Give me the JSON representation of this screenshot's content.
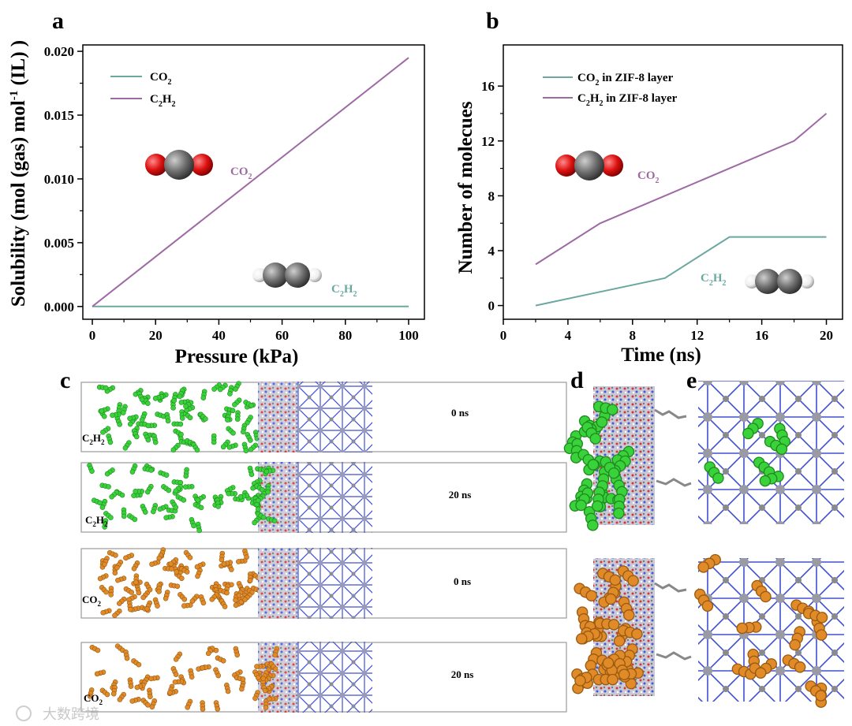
{
  "panel_letters": {
    "a": "a",
    "b": "b",
    "c": "c",
    "d": "d",
    "e": "e"
  },
  "colors": {
    "co2_line": "#6aa8a0",
    "c2h2_line": "#9e6aa4",
    "annot_co2": "#9e6aa4",
    "annot_c2h2": "#6aa8a0",
    "zif": "#3f4fd2",
    "c2h2_mol": "#3ad23a",
    "co2_mol": "#e08a28",
    "oxygen": "#dd1111",
    "carbon": "#6e6e6e",
    "hydrogen": "#f2f2f2"
  },
  "chart_data": [
    {
      "type": "line",
      "title": "",
      "xlabel": "Pressure (kPa)",
      "ylabel": "Solubility (mol (gas) mol-1 (IL) )",
      "xlim": [
        -3,
        105
      ],
      "ylim": [
        -0.001,
        0.0205
      ],
      "xticks": [
        "0",
        "20",
        "40",
        "60",
        "80",
        "100"
      ],
      "yticks": [
        "0.000",
        "0.005",
        "0.010",
        "0.015",
        "0.020"
      ],
      "series": [
        {
          "name": "CO2",
          "x": [
            0,
            100
          ],
          "y": [
            0,
            0
          ]
        },
        {
          "name": "C2H2",
          "x": [
            0,
            100
          ],
          "y": [
            0,
            0.0195
          ]
        }
      ],
      "legend_position": "top-left",
      "annotations": [
        "CO2",
        "C2H2"
      ]
    },
    {
      "type": "line",
      "title": "",
      "xlabel": "Time (ns)",
      "ylabel": "Number of molecues",
      "xlim": [
        0,
        21
      ],
      "ylim": [
        -1,
        19
      ],
      "xticks": [
        "0",
        "4",
        "8",
        "12",
        "16",
        "20"
      ],
      "yticks": [
        "0",
        "4",
        "8",
        "12",
        "16"
      ],
      "series": [
        {
          "name": "CO2 in ZIF-8 layer",
          "x": [
            2,
            6,
            10,
            14,
            18,
            20
          ],
          "y": [
            0,
            1,
            2,
            5,
            5,
            5
          ]
        },
        {
          "name": "C2H2 in ZIF-8 layer",
          "x": [
            2,
            6,
            10,
            14,
            18,
            20
          ],
          "y": [
            3,
            6,
            8,
            10,
            12,
            14
          ]
        }
      ],
      "legend_position": "top-left",
      "annotations": [
        "CO2",
        "C2H2"
      ]
    }
  ],
  "panel_a": {
    "ylabel_main": "Solubility (mol (gas) mol",
    "ylabel_sup": "-1",
    "ylabel_end": " (IL) )",
    "xlabel": "Pressure (kPa)",
    "legend_co2": "CO",
    "legend_co2_sub": "2",
    "legend_c2h2_a": "C",
    "legend_c2h2_sub1": "2",
    "legend_c2h2_b": "H",
    "legend_c2h2_sub2": "2",
    "annot_co2": "CO",
    "annot_co2_sub": "2",
    "annot_c2h2_a": "C",
    "annot_c2h2_sub1": "2",
    "annot_c2h2_b": "H",
    "annot_c2h2_sub2": "2"
  },
  "panel_b": {
    "xlabel": "Time (ns)",
    "ylabel": "Number of molecues",
    "legend_co2": "CO",
    "legend_co2_sub": "2",
    "legend_co2_tail": " in ZIF-8 layer",
    "legend_c2h2_a": "C",
    "legend_c2h2_sub1": "2",
    "legend_c2h2_b": "H",
    "legend_c2h2_sub2": "2",
    "legend_c2h2_tail": " in ZIF-8 layer",
    "annot_co2": "CO",
    "annot_co2_sub": "2",
    "annot_c2h2_a": "C",
    "annot_c2h2_sub1": "2",
    "annot_c2h2_b": "H",
    "annot_c2h2_sub2": "2"
  },
  "panel_c": {
    "box1_time": "0 ns",
    "box2_time": "20 ns",
    "box3_time": "0 ns",
    "box4_time": "20 ns",
    "c2h2_a": "C",
    "c2h2_sub1": "2",
    "c2h2_b": "H",
    "c2h2_sub2": "2",
    "co2": "CO",
    "co2_sub": "2"
  },
  "watermark": "大数跨境"
}
